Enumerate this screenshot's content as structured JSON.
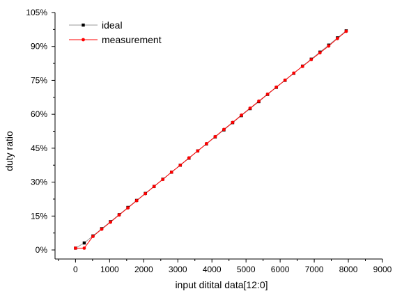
{
  "chart_data": {
    "type": "line",
    "title": "",
    "xlabel": "input ditital data[12:0]",
    "ylabel": "duty ratio",
    "xlim": [
      -600,
      9000
    ],
    "ylim": [
      -4,
      105
    ],
    "x_ticks": [
      0,
      1000,
      2000,
      3000,
      4000,
      5000,
      6000,
      7000,
      8000,
      9000
    ],
    "y_ticks": [
      0,
      15,
      30,
      45,
      60,
      75,
      90,
      105
    ],
    "y_tick_labels": [
      "0%",
      "15%",
      "30%",
      "45%",
      "60%",
      "75%",
      "90%",
      "105%"
    ],
    "grid": false,
    "legend_position": "top-left",
    "series": [
      {
        "name": "ideal",
        "color": "#000000",
        "line_color": "#9a9a9a",
        "x": [
          0,
          256,
          512,
          768,
          1024,
          1280,
          1536,
          1792,
          2048,
          2304,
          2560,
          2816,
          3072,
          3328,
          3584,
          3840,
          4096,
          4352,
          4608,
          4864,
          5120,
          5376,
          5632,
          5888,
          6144,
          6400,
          6656,
          6912,
          7168,
          7424,
          7680,
          7936
        ],
        "y": [
          0.8,
          3.1,
          6.2,
          9.4,
          12.5,
          15.6,
          18.8,
          21.9,
          25.0,
          28.1,
          31.3,
          34.4,
          37.5,
          40.6,
          43.8,
          46.9,
          50.0,
          53.1,
          56.3,
          59.4,
          62.5,
          65.6,
          68.8,
          71.9,
          75.0,
          78.1,
          81.3,
          84.4,
          87.5,
          90.6,
          93.8,
          96.9
        ]
      },
      {
        "name": "measurement",
        "color": "#ff0000",
        "line_color": "#ff0000",
        "x": [
          0,
          256,
          512,
          768,
          1024,
          1280,
          1536,
          1792,
          2048,
          2304,
          2560,
          2816,
          3072,
          3328,
          3584,
          3840,
          4096,
          4352,
          4608,
          4864,
          5120,
          5376,
          5632,
          5888,
          6144,
          6400,
          6656,
          6912,
          7168,
          7424,
          7680,
          7936
        ],
        "y": [
          0.8,
          0.8,
          6.0,
          9.2,
          12.3,
          15.5,
          18.6,
          21.8,
          24.9,
          28.1,
          31.2,
          34.4,
          37.5,
          40.7,
          43.8,
          47.0,
          50.1,
          53.3,
          56.4,
          59.6,
          62.7,
          65.8,
          68.9,
          72.0,
          75.1,
          78.2,
          81.2,
          84.2,
          87.2,
          90.2,
          93.5,
          96.7
        ]
      }
    ]
  }
}
